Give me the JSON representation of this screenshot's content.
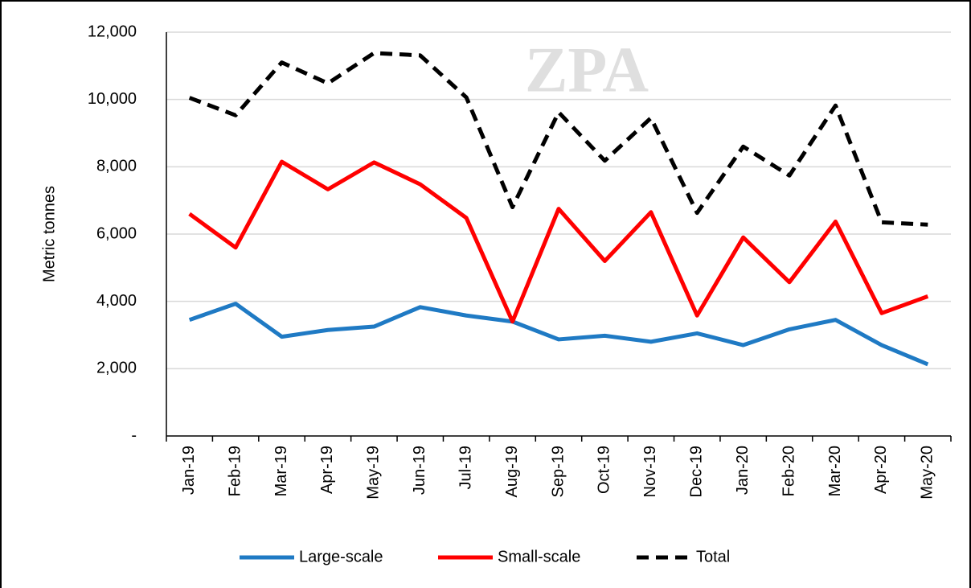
{
  "chart_data": {
    "type": "line",
    "watermark": "ZPA",
    "y_label": "Metric tonnes",
    "categories": [
      "Jan-19",
      "Feb-19",
      "Mar-19",
      "Apr-19",
      "May-19",
      "Jun-19",
      "Jul-19",
      "Aug-19",
      "Sep-19",
      "Oct-19",
      "Nov-19",
      "Dec-19",
      "Jan-20",
      "Feb-20",
      "Mar-20",
      "Apr-20",
      "May-20"
    ],
    "series": [
      {
        "name": "Large-scale",
        "color": "#1f7ac4",
        "dash": false,
        "values": [
          3450,
          3930,
          2950,
          3150,
          3250,
          3830,
          3580,
          3400,
          2870,
          2980,
          2800,
          3050,
          2700,
          3170,
          3450,
          2700,
          2130
        ]
      },
      {
        "name": "Small-scale",
        "color": "#ff0000",
        "dash": false,
        "values": [
          6600,
          5600,
          8150,
          7330,
          8130,
          7480,
          6480,
          3400,
          6750,
          5200,
          6650,
          3580,
          5900,
          4570,
          6370,
          3650,
          4150
        ]
      },
      {
        "name": "Total",
        "color": "#000000",
        "dash": true,
        "values": [
          10050,
          9530,
          11100,
          10480,
          11380,
          11310,
          10060,
          6800,
          9620,
          8180,
          9450,
          6630,
          8600,
          7740,
          9820,
          6350,
          6280
        ]
      }
    ],
    "ylim": [
      0,
      12000
    ],
    "yticks": [
      {
        "value": 0,
        "label": "-"
      },
      {
        "value": 2000,
        "label": "2,000"
      },
      {
        "value": 4000,
        "label": "4,000"
      },
      {
        "value": 6000,
        "label": "6,000"
      },
      {
        "value": 8000,
        "label": "8,000"
      },
      {
        "value": 10000,
        "label": "10,000"
      },
      {
        "value": 12000,
        "label": "12,000"
      }
    ],
    "grid": true,
    "legend": "bottom"
  }
}
